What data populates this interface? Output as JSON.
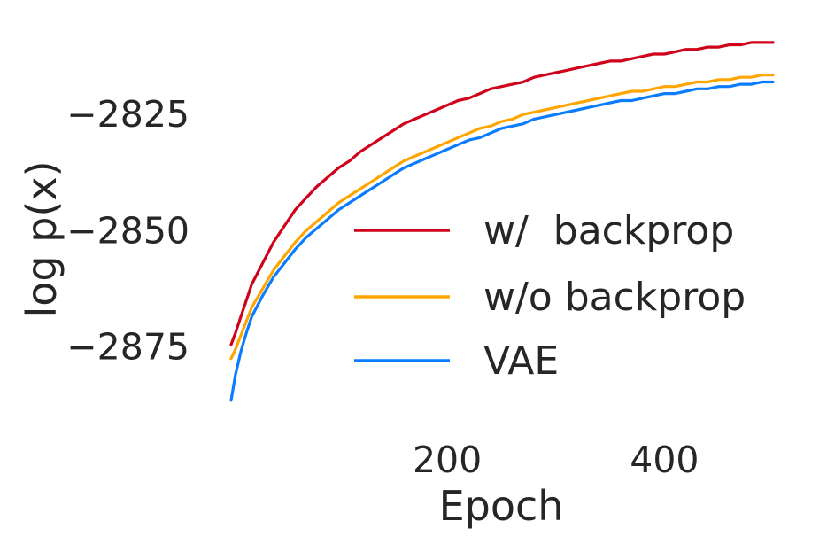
{
  "chart_data": {
    "type": "line",
    "title": "",
    "xlabel": "Epoch",
    "ylabel": "log p(x)",
    "xlim": [
      1,
      500
    ],
    "ylim": [
      -2889,
      -2808
    ],
    "xticks": [
      {
        "value": 200,
        "label": "200"
      },
      {
        "value": 400,
        "label": "400"
      }
    ],
    "yticks": [
      {
        "value": -2825,
        "label": "−2825"
      },
      {
        "value": -2850,
        "label": "−2850"
      },
      {
        "value": -2875,
        "label": "−2875"
      }
    ],
    "grid": false,
    "legend_position": "lower-right",
    "series": [
      {
        "name": "w/  backprop",
        "color": "#d0021b",
        "points": [
          [
            1,
            -2874.5
          ],
          [
            5,
            -2872.0
          ],
          [
            10,
            -2868.5
          ],
          [
            15,
            -2865.0
          ],
          [
            20,
            -2861.5
          ],
          [
            30,
            -2857.0
          ],
          [
            40,
            -2852.5
          ],
          [
            50,
            -2849.0
          ],
          [
            60,
            -2845.5
          ],
          [
            70,
            -2843.0
          ],
          [
            80,
            -2840.5
          ],
          [
            90,
            -2838.5
          ],
          [
            100,
            -2836.5
          ],
          [
            110,
            -2835.0
          ],
          [
            120,
            -2833.0
          ],
          [
            130,
            -2831.5
          ],
          [
            140,
            -2830.0
          ],
          [
            150,
            -2828.5
          ],
          [
            160,
            -2827.0
          ],
          [
            170,
            -2826.0
          ],
          [
            180,
            -2825.0
          ],
          [
            190,
            -2824.0
          ],
          [
            200,
            -2823.0
          ],
          [
            210,
            -2822.0
          ],
          [
            220,
            -2821.5
          ],
          [
            230,
            -2820.5
          ],
          [
            240,
            -2819.5
          ],
          [
            250,
            -2819.0
          ],
          [
            260,
            -2818.5
          ],
          [
            270,
            -2818.0
          ],
          [
            280,
            -2817.0
          ],
          [
            290,
            -2816.5
          ],
          [
            300,
            -2816.0
          ],
          [
            310,
            -2815.5
          ],
          [
            320,
            -2815.0
          ],
          [
            330,
            -2814.5
          ],
          [
            340,
            -2814.0
          ],
          [
            350,
            -2813.5
          ],
          [
            360,
            -2813.5
          ],
          [
            370,
            -2813.0
          ],
          [
            380,
            -2812.5
          ],
          [
            390,
            -2812.0
          ],
          [
            400,
            -2812.0
          ],
          [
            410,
            -2811.5
          ],
          [
            420,
            -2811.0
          ],
          [
            430,
            -2811.0
          ],
          [
            440,
            -2810.5
          ],
          [
            450,
            -2810.5
          ],
          [
            460,
            -2810.0
          ],
          [
            470,
            -2810.0
          ],
          [
            480,
            -2809.5
          ],
          [
            490,
            -2809.5
          ],
          [
            500,
            -2809.5
          ]
        ]
      },
      {
        "name": "w/o backprop",
        "color": "#ffa500",
        "points": [
          [
            1,
            -2877.5
          ],
          [
            5,
            -2875.5
          ],
          [
            10,
            -2872.5
          ],
          [
            15,
            -2869.5
          ],
          [
            20,
            -2866.5
          ],
          [
            30,
            -2862.5
          ],
          [
            40,
            -2858.5
          ],
          [
            50,
            -2855.5
          ],
          [
            60,
            -2852.5
          ],
          [
            70,
            -2850.0
          ],
          [
            80,
            -2848.0
          ],
          [
            90,
            -2846.0
          ],
          [
            100,
            -2844.0
          ],
          [
            110,
            -2842.5
          ],
          [
            120,
            -2841.0
          ],
          [
            130,
            -2839.5
          ],
          [
            140,
            -2838.0
          ],
          [
            150,
            -2836.5
          ],
          [
            160,
            -2835.0
          ],
          [
            170,
            -2834.0
          ],
          [
            180,
            -2833.0
          ],
          [
            190,
            -2832.0
          ],
          [
            200,
            -2831.0
          ],
          [
            210,
            -2830.0
          ],
          [
            220,
            -2829.0
          ],
          [
            230,
            -2828.0
          ],
          [
            240,
            -2827.5
          ],
          [
            250,
            -2826.5
          ],
          [
            260,
            -2826.0
          ],
          [
            270,
            -2825.0
          ],
          [
            280,
            -2824.5
          ],
          [
            290,
            -2824.0
          ],
          [
            300,
            -2823.5
          ],
          [
            310,
            -2823.0
          ],
          [
            320,
            -2822.5
          ],
          [
            330,
            -2822.0
          ],
          [
            340,
            -2821.5
          ],
          [
            350,
            -2821.0
          ],
          [
            360,
            -2820.5
          ],
          [
            370,
            -2820.0
          ],
          [
            380,
            -2820.0
          ],
          [
            390,
            -2819.5
          ],
          [
            400,
            -2819.0
          ],
          [
            410,
            -2819.0
          ],
          [
            420,
            -2818.5
          ],
          [
            430,
            -2818.0
          ],
          [
            440,
            -2818.0
          ],
          [
            450,
            -2817.5
          ],
          [
            460,
            -2817.5
          ],
          [
            470,
            -2817.0
          ],
          [
            480,
            -2817.0
          ],
          [
            490,
            -2816.5
          ],
          [
            500,
            -2816.5
          ]
        ]
      },
      {
        "name": "VAE",
        "color": "#0a7cff",
        "points": [
          [
            1,
            -2886.5
          ],
          [
            5,
            -2881.0
          ],
          [
            10,
            -2876.0
          ],
          [
            15,
            -2872.0
          ],
          [
            20,
            -2868.5
          ],
          [
            30,
            -2864.0
          ],
          [
            40,
            -2860.0
          ],
          [
            50,
            -2857.0
          ],
          [
            60,
            -2854.0
          ],
          [
            70,
            -2851.5
          ],
          [
            80,
            -2849.5
          ],
          [
            90,
            -2847.5
          ],
          [
            100,
            -2845.5
          ],
          [
            110,
            -2844.0
          ],
          [
            120,
            -2842.5
          ],
          [
            130,
            -2841.0
          ],
          [
            140,
            -2839.5
          ],
          [
            150,
            -2838.0
          ],
          [
            160,
            -2836.5
          ],
          [
            170,
            -2835.5
          ],
          [
            180,
            -2834.5
          ],
          [
            190,
            -2833.5
          ],
          [
            200,
            -2832.5
          ],
          [
            210,
            -2831.5
          ],
          [
            220,
            -2830.5
          ],
          [
            230,
            -2830.0
          ],
          [
            240,
            -2829.0
          ],
          [
            250,
            -2828.0
          ],
          [
            260,
            -2827.5
          ],
          [
            270,
            -2827.0
          ],
          [
            280,
            -2826.0
          ],
          [
            290,
            -2825.5
          ],
          [
            300,
            -2825.0
          ],
          [
            310,
            -2824.5
          ],
          [
            320,
            -2824.0
          ],
          [
            330,
            -2823.5
          ],
          [
            340,
            -2823.0
          ],
          [
            350,
            -2822.5
          ],
          [
            360,
            -2822.0
          ],
          [
            370,
            -2822.0
          ],
          [
            380,
            -2821.5
          ],
          [
            390,
            -2821.0
          ],
          [
            400,
            -2820.5
          ],
          [
            410,
            -2820.5
          ],
          [
            420,
            -2820.0
          ],
          [
            430,
            -2819.5
          ],
          [
            440,
            -2819.5
          ],
          [
            450,
            -2819.0
          ],
          [
            460,
            -2819.0
          ],
          [
            470,
            -2818.5
          ],
          [
            480,
            -2818.5
          ],
          [
            490,
            -2818.0
          ],
          [
            500,
            -2818.0
          ]
        ]
      }
    ]
  }
}
